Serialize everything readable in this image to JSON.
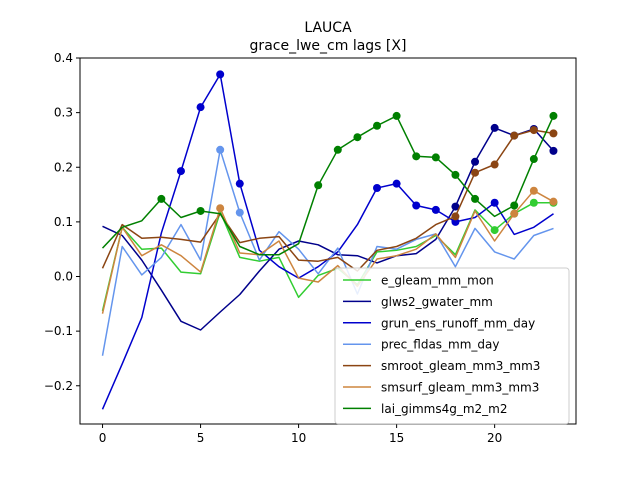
{
  "chart_data": {
    "type": "line",
    "title": "LAUCA",
    "subtitle": "grace_lwe_cm lags [X]",
    "xlabel": "",
    "ylabel": "",
    "xlim": [
      -1.15,
      24.15
    ],
    "ylim": [
      -0.27,
      0.4
    ],
    "x_ticks": [
      0,
      5,
      10,
      15,
      20
    ],
    "y_ticks": [
      -0.2,
      -0.1,
      0.0,
      0.1,
      0.2,
      0.3,
      0.4
    ],
    "y_tick_labels": [
      "−0.2",
      "−0.1",
      "0.0",
      "0.1",
      "0.2",
      "0.3",
      "0.4"
    ],
    "x_tick_labels": [
      "0",
      "5",
      "10",
      "15",
      "20"
    ],
    "legend_position": "lower-right",
    "grid": false,
    "x": [
      0,
      1,
      2,
      3,
      4,
      5,
      6,
      7,
      8,
      9,
      10,
      11,
      12,
      13,
      14,
      15,
      16,
      17,
      18,
      19,
      20,
      21,
      22,
      23
    ],
    "series": [
      {
        "name": "e_gleam_mm_mon",
        "color": "#32cd32",
        "values": [
          -0.063,
          0.09,
          0.05,
          0.052,
          0.008,
          0.005,
          0.118,
          0.035,
          0.028,
          0.035,
          -0.038,
          0.002,
          0.015,
          -0.015,
          0.045,
          0.048,
          0.055,
          0.075,
          0.04,
          0.122,
          0.085,
          0.115,
          0.135,
          0.135
        ],
        "markers": [
          20,
          21,
          22,
          23
        ]
      },
      {
        "name": "glws2_gwater_mm",
        "color": "#00008b",
        "values": [
          0.092,
          0.075,
          0.03,
          -0.025,
          -0.082,
          -0.098,
          -0.065,
          -0.033,
          0.01,
          0.05,
          0.065,
          0.058,
          0.04,
          0.038,
          0.025,
          0.038,
          0.042,
          0.068,
          0.128,
          0.21,
          0.272,
          0.258,
          0.27,
          0.23
        ],
        "markers": [
          18,
          19,
          20,
          21,
          22,
          23
        ]
      },
      {
        "name": "grun_ens_runoff_mm_day",
        "color": "#0000cd",
        "values": [
          -0.243,
          -0.16,
          -0.075,
          0.08,
          0.193,
          0.31,
          0.37,
          0.17,
          0.048,
          0.018,
          -0.003,
          0.018,
          0.045,
          0.095,
          0.162,
          0.17,
          0.13,
          0.122,
          0.1,
          0.108,
          0.135,
          0.077,
          0.09,
          0.115
        ],
        "markers": [
          4,
          5,
          6,
          7,
          14,
          15,
          16,
          17,
          18,
          20
        ]
      },
      {
        "name": "prec_fldas_mm_day",
        "color": "#6495ed",
        "values": [
          -0.145,
          0.055,
          0.003,
          0.035,
          0.095,
          0.03,
          0.232,
          0.117,
          0.03,
          0.082,
          0.05,
          0.005,
          0.052,
          -0.032,
          0.055,
          0.05,
          0.068,
          0.078,
          0.018,
          0.088,
          0.045,
          0.032,
          0.075,
          0.088
        ],
        "markers": [
          6,
          7
        ]
      },
      {
        "name": "smroot_gleam_mm3_mm3",
        "color": "#8b4513",
        "values": [
          0.015,
          0.095,
          0.07,
          0.072,
          0.068,
          0.063,
          0.115,
          0.062,
          0.07,
          0.073,
          0.03,
          0.028,
          0.035,
          0.01,
          0.048,
          0.055,
          0.07,
          0.095,
          0.11,
          0.19,
          0.205,
          0.258,
          0.268,
          0.262
        ],
        "markers": [
          18,
          19,
          20,
          21,
          22,
          23
        ]
      },
      {
        "name": "smsurf_gleam_mm3_mm3",
        "color": "#cd853f",
        "values": [
          -0.068,
          0.09,
          0.038,
          0.058,
          0.038,
          0.008,
          0.125,
          0.043,
          0.04,
          0.065,
          -0.003,
          -0.01,
          0.02,
          -0.018,
          0.032,
          0.038,
          0.05,
          0.078,
          0.035,
          0.12,
          0.065,
          0.115,
          0.157,
          0.137
        ],
        "markers": [
          6,
          21,
          22,
          23
        ]
      },
      {
        "name": "lai_gimms4g_m2_m2",
        "color": "#008000",
        "values": [
          0.052,
          0.09,
          0.102,
          0.142,
          0.108,
          0.12,
          0.115,
          0.055,
          0.04,
          0.04,
          0.06,
          0.167,
          0.232,
          0.255,
          0.276,
          0.294,
          0.22,
          0.218,
          0.186,
          0.142,
          0.11,
          0.13,
          0.215,
          0.294
        ],
        "markers": [
          3,
          5,
          11,
          12,
          13,
          14,
          15,
          16,
          17,
          18,
          19,
          21,
          22,
          23
        ]
      }
    ]
  }
}
